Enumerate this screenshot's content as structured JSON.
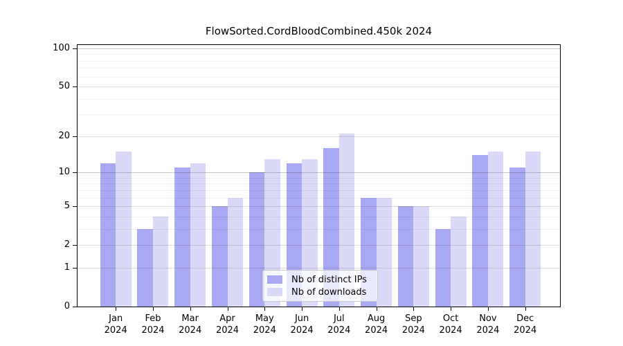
{
  "chart_data": {
    "type": "bar",
    "title": "FlowSorted.CordBloodCombined.450k 2024",
    "categories": [
      "Jan",
      "Feb",
      "Mar",
      "Apr",
      "May",
      "Jun",
      "Jul",
      "Aug",
      "Sep",
      "Oct",
      "Nov",
      "Dec"
    ],
    "category_year": "2024",
    "series": [
      {
        "name": "Nb of distinct IPs",
        "color": "#a9a9f3",
        "values": [
          12,
          3,
          11,
          5,
          10,
          12,
          16,
          6,
          5,
          3,
          14,
          11
        ]
      },
      {
        "name": "Nb of downloads",
        "color": "#dadaf8",
        "values": [
          15,
          4,
          12,
          6,
          13,
          13,
          21,
          6,
          5,
          4,
          15,
          15
        ]
      }
    ],
    "y_axis": {
      "scale": "log10(1+x)",
      "tick_values": [
        0,
        1,
        2,
        5,
        10,
        20,
        50,
        100
      ],
      "minor_gridline_values": [
        3,
        4,
        6,
        7,
        8,
        9,
        30,
        40,
        60,
        70,
        80,
        90
      ],
      "top_value": 110
    },
    "xlabel": "",
    "ylabel": "",
    "grid": true,
    "legend_position": "bottom-center",
    "style": {
      "axis_color": "#000000",
      "major_grid_color": "rgba(0,0,0,0.13)",
      "decade_grid_color": "rgba(0,0,0,0.22)",
      "minor_grid_color": "rgba(0,0,0,0.055)",
      "background": "#ffffff"
    }
  }
}
